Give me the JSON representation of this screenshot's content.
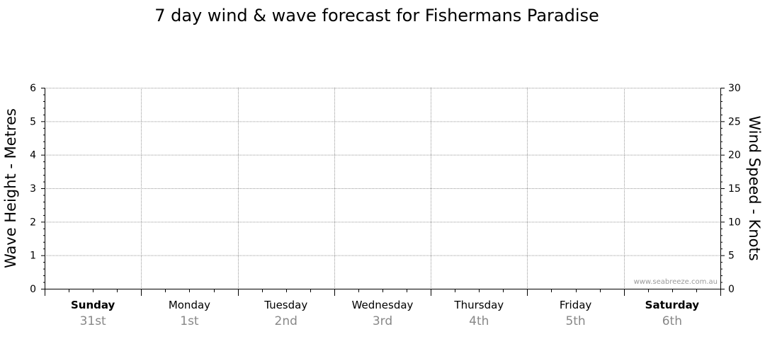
{
  "chart_data": {
    "type": "line",
    "title": "7 day wind & wave forecast for Fishermans Paradise",
    "ylabel_left": "Wave Height - Metres",
    "ylabel_right": "Wind Speed - Knots",
    "ylim_left": [
      0,
      6
    ],
    "ylim_right": [
      0,
      30
    ],
    "yticks_left": [
      "0",
      "1",
      "2",
      "3",
      "4",
      "5",
      "6"
    ],
    "yticks_right": [
      "0",
      "5",
      "10",
      "15",
      "20",
      "25",
      "30"
    ],
    "days": [
      {
        "day": "Sunday",
        "date": "31st",
        "bold": true
      },
      {
        "day": "Monday",
        "date": "1st",
        "bold": false
      },
      {
        "day": "Tuesday",
        "date": "2nd",
        "bold": false
      },
      {
        "day": "Wednesday",
        "date": "3rd",
        "bold": false
      },
      {
        "day": "Thursday",
        "date": "4th",
        "bold": false
      },
      {
        "day": "Friday",
        "date": "5th",
        "bold": false
      },
      {
        "day": "Saturday",
        "date": "6th",
        "bold": true
      }
    ],
    "series": [],
    "grid": true,
    "watermark": "www.seabreeze.com.au",
    "colors": {
      "grid": "#999999",
      "axis": "#000000",
      "date_label": "#888888",
      "watermark": "#999999"
    }
  }
}
